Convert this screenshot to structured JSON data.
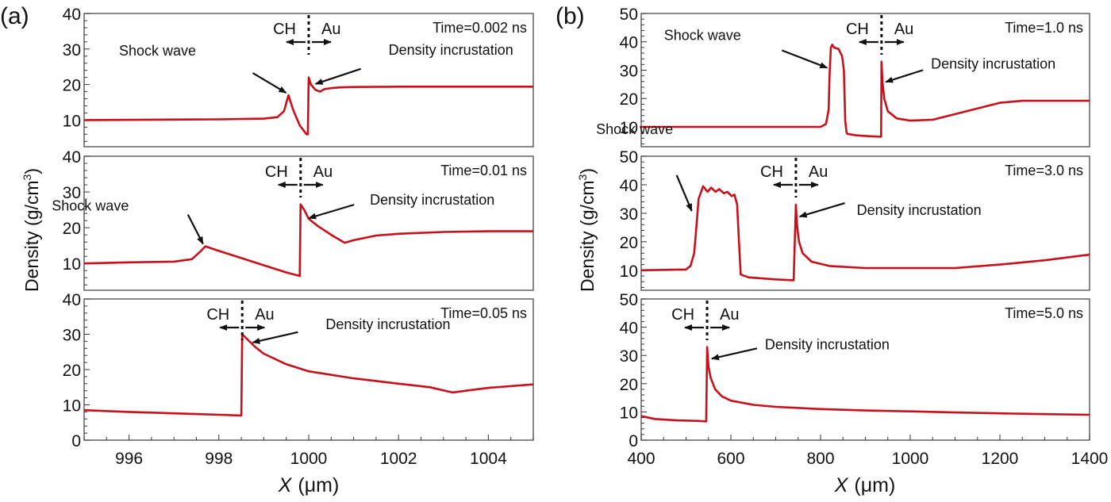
{
  "figure": {
    "panels": [
      {
        "id": "a",
        "label": "(a)"
      },
      {
        "id": "b",
        "label": "(b)"
      }
    ],
    "ylabel_text": "Density (g/cm",
    "ylabel_sup": "3",
    "ylabel_close": ")",
    "xlabel_var": "X",
    "xlabel_unit": "(μm)"
  },
  "chart_data": [
    {
      "type": "line",
      "panel": "a",
      "title": "Time=0.002 ns",
      "xlabel": "X (μm)",
      "ylabel": "Density (g/cm3)",
      "xlim": [
        995,
        1005
      ],
      "ylim": [
        2.5,
        40
      ],
      "xticks": [
        996,
        998,
        1000,
        1002,
        1004
      ],
      "yticks": [
        10,
        20,
        30,
        40
      ],
      "series": [
        {
          "name": "density",
          "x": [
            995,
            998.0,
            999.0,
            999.3,
            999.45,
            999.55,
            999.65,
            999.8,
            999.95,
            999.98,
            1000.0,
            1000.05,
            1000.15,
            1000.25,
            1000.35,
            1000.5,
            1000.7,
            1001.0,
            1002.0,
            1005.0
          ],
          "y": [
            10,
            10.2,
            10.4,
            10.8,
            12.5,
            17,
            13,
            8.5,
            6,
            6,
            22,
            20,
            18.5,
            18,
            18.7,
            19,
            19.2,
            19.3,
            19.4,
            19.4
          ]
        }
      ],
      "annotations": [
        {
          "text": "Shock wave",
          "x": 999.55,
          "y": 17
        },
        {
          "text": "Density incrustation",
          "x": 1000.1,
          "y": 19.5
        }
      ],
      "interface": {
        "x": 1000.0,
        "left": "CH",
        "right": "Au"
      }
    },
    {
      "type": "line",
      "panel": "a",
      "title": "Time=0.01 ns",
      "xlabel": "X (μm)",
      "ylabel": "Density (g/cm3)",
      "xlim": [
        995,
        1005
      ],
      "ylim": [
        2.5,
        40
      ],
      "xticks": [
        996,
        998,
        1000,
        1002,
        1004
      ],
      "yticks": [
        10,
        20,
        30,
        40
      ],
      "series": [
        {
          "name": "density",
          "x": [
            995,
            996.0,
            997.0,
            997.4,
            997.6,
            997.7,
            998.0,
            998.5,
            999.0,
            999.5,
            999.8,
            999.82,
            999.9,
            1000.0,
            1000.2,
            1000.5,
            1000.8,
            1001.0,
            1001.5,
            1002.0,
            1003.0,
            1004.0,
            1005.0
          ],
          "y": [
            10,
            10.3,
            10.5,
            11.2,
            13.5,
            14.8,
            13.5,
            11.5,
            9.5,
            7.5,
            6.5,
            26.5,
            25,
            22.5,
            20.5,
            18,
            15.8,
            16.5,
            17.8,
            18.3,
            18.8,
            19.0,
            19.0
          ]
        }
      ],
      "annotations": [
        {
          "text": "Shock wave",
          "x": 997.7,
          "y": 14.8
        },
        {
          "text": "Density incrustation",
          "x": 999.95,
          "y": 22
        }
      ],
      "interface": {
        "x": 999.82,
        "left": "CH",
        "right": "Au"
      }
    },
    {
      "type": "line",
      "panel": "a",
      "title": "Time=0.05 ns",
      "xlabel": "X (μm)",
      "ylabel": "Density (g/cm3)",
      "xlim": [
        995,
        1005
      ],
      "ylim": [
        0,
        40
      ],
      "xticks": [
        996,
        998,
        1000,
        1002,
        1004
      ],
      "yticks": [
        0,
        10,
        20,
        30,
        40
      ],
      "series": [
        {
          "name": "density",
          "x": [
            995,
            996.0,
            997.0,
            998.0,
            998.5,
            998.52,
            998.6,
            998.8,
            999.0,
            999.5,
            1000.0,
            1001.0,
            1002.0,
            1002.7,
            1003.2,
            1003.5,
            1004.0,
            1005.0
          ],
          "y": [
            8.5,
            8.0,
            7.6,
            7.2,
            7.0,
            30,
            29,
            26.5,
            24.5,
            21.5,
            19.5,
            17.5,
            16.0,
            15.0,
            13.5,
            14.0,
            14.8,
            15.8
          ]
        }
      ],
      "annotations": [
        {
          "text": "Density incrustation",
          "x": 998.7,
          "y": 27
        }
      ],
      "interface": {
        "x": 998.52,
        "left": "CH",
        "right": "Au"
      }
    },
    {
      "type": "line",
      "panel": "b",
      "title": "Time=1.0 ns",
      "xlabel": "X (μm)",
      "ylabel": "Density (g/cm3)",
      "xlim": [
        400,
        1400
      ],
      "ylim": [
        3,
        50
      ],
      "xticks": [
        400,
        600,
        800,
        1000,
        1200,
        1400
      ],
      "yticks": [
        10,
        20,
        30,
        40,
        50
      ],
      "series": [
        {
          "name": "density",
          "x": [
            400,
            800,
            812,
            818,
            820,
            823,
            826,
            830,
            840,
            848,
            852,
            855,
            858,
            860,
            880,
            900,
            935,
            936,
            938,
            942,
            950,
            970,
            1000,
            1050,
            1100,
            1150,
            1200,
            1250,
            1400
          ],
          "y": [
            10,
            10,
            11,
            16,
            28,
            38,
            39,
            38,
            37.5,
            35,
            30,
            12,
            8,
            7.5,
            7,
            6.8,
            6.5,
            33,
            26,
            20,
            15.5,
            13,
            12.2,
            12.5,
            14.5,
            16.5,
            18.5,
            19.2,
            19.2
          ]
        }
      ],
      "annotations": [
        {
          "text": "Shock wave",
          "x": 820,
          "y": 30
        },
        {
          "text": "Density incrustation",
          "x": 940,
          "y": 25
        }
      ],
      "interface": {
        "x": 936,
        "left": "CH",
        "right": "Au"
      }
    },
    {
      "type": "line",
      "panel": "b",
      "title": "Time=3.0 ns",
      "xlabel": "X (μm)",
      "ylabel": "Density (g/cm3)",
      "xlim": [
        400,
        1400
      ],
      "ylim": [
        3,
        50
      ],
      "xticks": [
        400,
        600,
        800,
        1000,
        1200,
        1400
      ],
      "yticks": [
        10,
        20,
        30,
        40,
        50
      ],
      "series": [
        {
          "name": "density",
          "x": [
            400,
            500,
            510,
            518,
            522,
            528,
            538,
            548,
            556,
            566,
            574,
            584,
            592,
            602,
            608,
            614,
            618,
            622,
            640,
            700,
            740,
            745,
            748,
            752,
            760,
            780,
            820,
            900,
            1000,
            1100,
            1200,
            1300,
            1400
          ],
          "y": [
            10,
            10.3,
            11.5,
            16,
            23,
            35,
            39.5,
            37.5,
            39,
            37.5,
            38.5,
            37,
            37.5,
            36,
            36.5,
            33,
            20,
            8.5,
            7.5,
            6.8,
            6.5,
            33,
            25,
            20,
            16,
            13,
            11.5,
            10.8,
            10.8,
            10.8,
            12,
            13.5,
            15.5
          ]
        }
      ],
      "annotations": [
        {
          "text": "Shock wave",
          "x": 518,
          "y": 30
        },
        {
          "text": "Density incrustation",
          "x": 748,
          "y": 28
        }
      ],
      "interface": {
        "x": 745,
        "left": "CH",
        "right": "Au"
      }
    },
    {
      "type": "line",
      "panel": "b",
      "title": "Time=5.0 ns",
      "xlabel": "X (μm)",
      "ylabel": "Density (g/cm3)",
      "xlim": [
        400,
        1400
      ],
      "ylim": [
        0,
        50
      ],
      "xticks": [
        400,
        600,
        800,
        1000,
        1200,
        1400
      ],
      "yticks": [
        0,
        10,
        20,
        30,
        40,
        50
      ],
      "series": [
        {
          "name": "density",
          "x": [
            400,
            430,
            480,
            530,
            545,
            547,
            550,
            555,
            565,
            580,
            600,
            650,
            700,
            800,
            900,
            1000,
            1100,
            1200,
            1300,
            1400
          ],
          "y": [
            8.5,
            7.5,
            7.0,
            6.8,
            6.6,
            33,
            26,
            22,
            18,
            15.5,
            14,
            12.5,
            11.8,
            11,
            10.5,
            10.2,
            9.8,
            9.5,
            9.2,
            9.0
          ]
        }
      ],
      "annotations": [
        {
          "text": "Density incrustation",
          "x": 552,
          "y": 28
        }
      ],
      "interface": {
        "x": 547,
        "left": "CH",
        "right": "Au"
      }
    }
  ]
}
